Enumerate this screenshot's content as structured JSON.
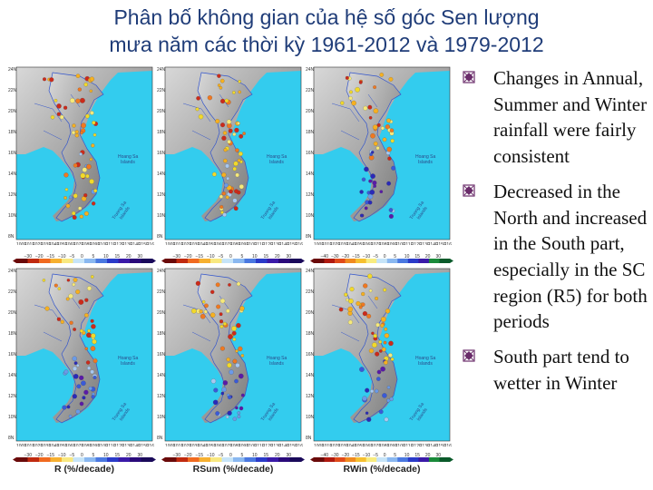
{
  "title": {
    "line1": "Phân bố không gian của hệ số góc Sen lượng",
    "line2": "mưa năm các thời kỳ 1961-2012 và 1979-2012"
  },
  "colors": {
    "sea": "#33ccee",
    "land_dark": "#7a7a7a",
    "land_light": "#d8d8d8",
    "border": "#3355cc",
    "accent": "#1f3c78",
    "bullet_icon": "#6b2d6b"
  },
  "maps": {
    "rows": [
      {
        "period": "1961-2012"
      },
      {
        "period": "1979-2012"
      }
    ],
    "columns": [
      {
        "id": "annual",
        "label": "R (%/decade)",
        "ticks": [
          "−30",
          "−20",
          "−15",
          "−10",
          "−5",
          "0",
          "5",
          "10",
          "15",
          "20",
          "30"
        ]
      },
      {
        "id": "summer",
        "label": "RSum (%/decade)",
        "ticks": [
          "−30",
          "−20",
          "−15",
          "−10",
          "−5",
          "0",
          "5",
          "10",
          "15",
          "20",
          "30"
        ]
      },
      {
        "id": "winter",
        "label": "RWin (%/decade)",
        "ticks": [
          "−40",
          "−30",
          "−20",
          "−15",
          "−10",
          "−5",
          "0",
          "5",
          "10",
          "15",
          "20",
          "30"
        ]
      }
    ],
    "lat_ticks": [
      "24N",
      "22N",
      "20N",
      "18N",
      "16N",
      "14N",
      "12N",
      "10N",
      "8N"
    ],
    "lon_ticks": [
      "100E",
      "101E",
      "102E",
      "103E",
      "104E",
      "105E",
      "106E",
      "107E",
      "108E",
      "109E",
      "110E",
      "111E",
      "112E",
      "113E",
      "114E",
      "115E",
      "116E"
    ],
    "sea_labels": {
      "hoang_sa": [
        "Hoang Sa",
        "Islands"
      ],
      "truong_sa": [
        "Truong Sa",
        "Islands"
      ]
    }
  },
  "bullets": [
    "Changes in Annual, Summer and Winter rainfall were fairly consistent",
    "Decreased in the North and increased in the South part, especially in the SC region (R5) for both periods",
    "South part tend to wetter in Winter"
  ]
}
